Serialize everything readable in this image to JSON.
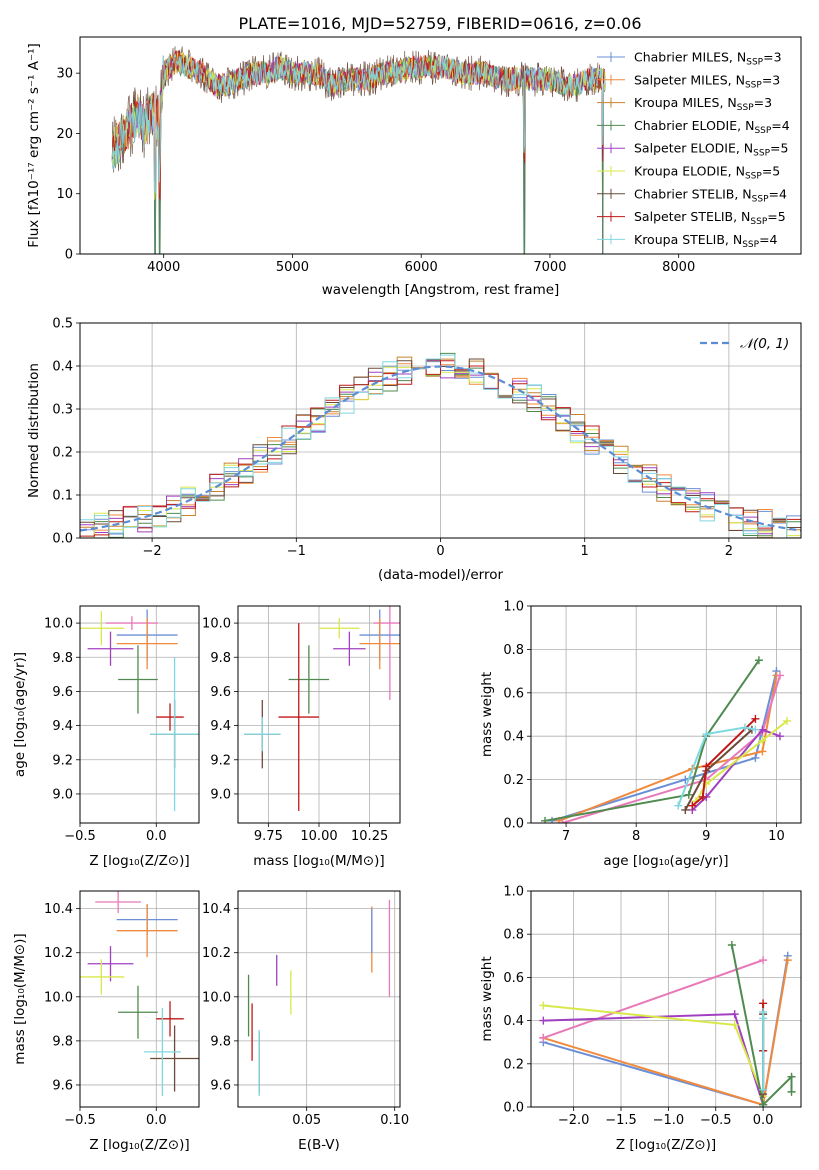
{
  "figure": {
    "title": "PLATE=1016, MJD=52759, FIBERID=0616, z=0.06"
  },
  "legend_entries": [
    {
      "label": "Chabrier MILES, N",
      "sub": "SSP",
      "tail": "=3",
      "color": "#6b8fd6"
    },
    {
      "label": "Salpeter MILES, N",
      "sub": "SSP",
      "tail": "=3",
      "color": "#f08a3c"
    },
    {
      "label": "Kroupa MILES, N",
      "sub": "SSP",
      "tail": "=3",
      "color": "#c8822e"
    },
    {
      "label": "Chabrier ELODIE, N",
      "sub": "SSP",
      "tail": "=4",
      "color": "#4f8a4f"
    },
    {
      "label": "Salpeter ELODIE, N",
      "sub": "SSP",
      "tail": "=5",
      "color": "#a040c0"
    },
    {
      "label": "Kroupa ELODIE, N",
      "sub": "SSP",
      "tail": "=5",
      "color": "#d8e84a"
    },
    {
      "label": "Chabrier STELIB, N",
      "sub": "SSP",
      "tail": "=4",
      "color": "#6b4a3a"
    },
    {
      "label": "Salpeter STELIB, N",
      "sub": "SSP",
      "tail": "=5",
      "color": "#c01818"
    },
    {
      "label": "Kroupa STELIB, N",
      "sub": "SSP",
      "tail": "=4",
      "color": "#7fd8e0"
    }
  ],
  "chart_data": [
    {
      "id": "spectrum",
      "type": "line",
      "xlabel": "wavelength [Angstrom, rest frame]",
      "ylabel": "Flux [fλ10⁻¹⁷ erg cm⁻² s⁻¹ A⁻¹]",
      "xlim": [
        3350,
        8950
      ],
      "ylim": [
        0,
        36
      ],
      "xticks": [
        4000,
        5000,
        6000,
        7000,
        8000
      ],
      "yticks": [
        0,
        10,
        20,
        30
      ],
      "x_range_data": [
        3600,
        7430
      ],
      "anchors": [
        [
          3600,
          17
        ],
        [
          3700,
          20
        ],
        [
          3800,
          23
        ],
        [
          3850,
          21
        ],
        [
          3900,
          24
        ],
        [
          3960,
          22
        ],
        [
          4000,
          30
        ],
        [
          4100,
          32
        ],
        [
          4200,
          31
        ],
        [
          4300,
          30
        ],
        [
          4400,
          28
        ],
        [
          4500,
          28
        ],
        [
          4600,
          29
        ],
        [
          4700,
          30
        ],
        [
          4800,
          30
        ],
        [
          4900,
          31
        ],
        [
          5000,
          30
        ],
        [
          5100,
          30
        ],
        [
          5200,
          30
        ],
        [
          5300,
          28
        ],
        [
          5400,
          29
        ],
        [
          5500,
          29
        ],
        [
          5600,
          29
        ],
        [
          5700,
          30
        ],
        [
          5800,
          30
        ],
        [
          5900,
          31
        ],
        [
          6000,
          31
        ],
        [
          6100,
          31
        ],
        [
          6200,
          31
        ],
        [
          6300,
          30
        ],
        [
          6400,
          30
        ],
        [
          6500,
          30
        ],
        [
          6600,
          29
        ],
        [
          6700,
          29
        ],
        [
          6800,
          29
        ],
        [
          6900,
          29
        ],
        [
          7000,
          29
        ],
        [
          7100,
          28
        ],
        [
          7200,
          28
        ],
        [
          7300,
          29
        ],
        [
          7430,
          29
        ]
      ],
      "dips": [
        3933,
        3968,
        6800,
        7410
      ],
      "grid": false
    },
    {
      "id": "residuals",
      "type": "histogram",
      "xlabel": "(data-model)/error",
      "ylabel": "Normed distribution",
      "xlim": [
        -2.5,
        2.5
      ],
      "ylim": [
        0,
        0.5
      ],
      "xticks": [
        -2,
        -1,
        0,
        1,
        2
      ],
      "xticklabels": [
        "−2",
        "−1",
        "0",
        "1",
        "2"
      ],
      "yticks": [
        0.0,
        0.1,
        0.2,
        0.3,
        0.4,
        0.5
      ],
      "yticklabels": [
        "0.0",
        "0.1",
        "0.2",
        "0.3",
        "0.4",
        "0.5"
      ],
      "bin_width": 0.1,
      "legend": "𝒩(0, 1)",
      "legend_position": "top-right",
      "grid": true
    },
    {
      "id": "age-vs-Z",
      "type": "scatter",
      "xlabel": "Z [log₁₀(Z/Z⊙)]",
      "ylabel": "age  [log₁₀(age/yr)]",
      "xlim": [
        -0.5,
        0.28
      ],
      "ylim": [
        8.83,
        10.1
      ],
      "xticks": [
        -0.5,
        0.0
      ],
      "xticklabels": [
        "−0.5",
        "0.0"
      ],
      "yticks": [
        9.0,
        9.2,
        9.4,
        9.6,
        9.8,
        10.0
      ],
      "yticklabels": [
        "9.0",
        "9.2",
        "9.4",
        "9.6",
        "9.8",
        "10.0"
      ],
      "points": [
        {
          "x": -0.16,
          "y": 10.0,
          "xerr": 0.17,
          "yerr": 0.04,
          "color": "#e879b8"
        },
        {
          "x": -0.06,
          "y": 9.93,
          "xerr": 0.2,
          "yerr": 0.15,
          "color": "#6b8fd6"
        },
        {
          "x": -0.06,
          "y": 9.88,
          "xerr": 0.2,
          "yerr": 0.15,
          "color": "#f08a3c"
        },
        {
          "x": -0.3,
          "y": 9.85,
          "xerr": 0.15,
          "yerr": 0.1,
          "color": "#a040c0"
        },
        {
          "x": -0.36,
          "y": 9.97,
          "xerr": 0.15,
          "yerr": 0.1,
          "color": "#d8e84a"
        },
        {
          "x": -0.12,
          "y": 9.67,
          "xerr": 0.13,
          "yerr": 0.2,
          "color": "#4f8a4f"
        },
        {
          "x": 0.09,
          "y": 9.45,
          "xerr": 0.09,
          "yerr": 0.08,
          "color": "#c01818"
        },
        {
          "x": 0.12,
          "y": 9.35,
          "xerr": 0.16,
          "yerr": 0.2,
          "color": "#6b4a3a"
        },
        {
          "x": 0.12,
          "y": 9.35,
          "xerr": 0.16,
          "yerr": 0.45,
          "color": "#7fd8e0"
        }
      ],
      "grid": true
    },
    {
      "id": "age-vs-mass",
      "type": "scatter",
      "xlabel": "mass [log₁₀(M/M⊙)]",
      "ylabel": "",
      "xlim": [
        9.6,
        10.4
      ],
      "ylim": [
        8.83,
        10.1
      ],
      "xticks": [
        9.75,
        10.0,
        10.25
      ],
      "xticklabels": [
        "9.75",
        "10.00",
        "10.25"
      ],
      "yticks": [
        9.0,
        9.2,
        9.4,
        9.6,
        9.8,
        10.0
      ],
      "yticklabels": [
        "9.0",
        "9.2",
        "9.4",
        "9.6",
        "9.8",
        "10.0"
      ],
      "points": [
        {
          "x": 10.35,
          "y": 10.0,
          "xerr": 0.08,
          "yerr": 0.45,
          "color": "#e879b8"
        },
        {
          "x": 10.3,
          "y": 9.93,
          "xerr": 0.1,
          "yerr": 0.15,
          "color": "#6b8fd6"
        },
        {
          "x": 10.3,
          "y": 9.88,
          "xerr": 0.1,
          "yerr": 0.15,
          "color": "#f08a3c"
        },
        {
          "x": 10.15,
          "y": 9.85,
          "xerr": 0.08,
          "yerr": 0.1,
          "color": "#a040c0"
        },
        {
          "x": 10.1,
          "y": 9.97,
          "xerr": 0.1,
          "yerr": 0.06,
          "color": "#d8e84a"
        },
        {
          "x": 9.95,
          "y": 9.67,
          "xerr": 0.1,
          "yerr": 0.2,
          "color": "#4f8a4f"
        },
        {
          "x": 9.9,
          "y": 9.45,
          "xerr": 0.1,
          "yerr": 0.55,
          "color": "#c01818"
        },
        {
          "x": 9.72,
          "y": 9.35,
          "xerr": 0.09,
          "yerr": 0.2,
          "color": "#6b4a3a"
        },
        {
          "x": 9.72,
          "y": 9.35,
          "xerr": 0.09,
          "yerr": 0.1,
          "color": "#7fd8e0"
        }
      ],
      "grid": true
    },
    {
      "id": "massweight-vs-age",
      "type": "line",
      "xlabel": "age  [log₁₀(age/yr)]",
      "ylabel": "mass weight",
      "xlim": [
        6.5,
        10.35
      ],
      "ylim": [
        0,
        1.0
      ],
      "xticks": [
        7,
        8,
        9,
        10
      ],
      "yticks": [
        0.0,
        0.2,
        0.4,
        0.6,
        0.8,
        1.0
      ],
      "yticklabels": [
        "0.0",
        "0.2",
        "0.4",
        "0.6",
        "0.8",
        "1.0"
      ],
      "series": [
        {
          "color": "#6b8fd6",
          "points": [
            [
              6.8,
              0.01
            ],
            [
              8.7,
              0.2
            ],
            [
              9.7,
              0.3
            ],
            [
              10.0,
              0.7
            ]
          ]
        },
        {
          "color": "#f08a3c",
          "points": [
            [
              6.9,
              0.01
            ],
            [
              8.8,
              0.25
            ],
            [
              9.8,
              0.33
            ],
            [
              10.0,
              0.68
            ]
          ]
        },
        {
          "color": "#e879b8",
          "points": [
            [
              6.95,
              0.0
            ],
            [
              9.0,
              0.2
            ],
            [
              9.8,
              0.42
            ],
            [
              10.05,
              0.68
            ]
          ]
        },
        {
          "color": "#a040c0",
          "points": [
            [
              8.8,
              0.06
            ],
            [
              9.0,
              0.12
            ],
            [
              9.8,
              0.43
            ],
            [
              10.05,
              0.4
            ]
          ]
        },
        {
          "color": "#d8e84a",
          "points": [
            [
              8.85,
              0.1
            ],
            [
              9.0,
              0.18
            ],
            [
              9.8,
              0.38
            ],
            [
              10.15,
              0.47
            ]
          ]
        },
        {
          "color": "#4f8a4f",
          "points": [
            [
              6.7,
              0.01
            ],
            [
              8.75,
              0.13
            ],
            [
              9.0,
              0.4
            ],
            [
              9.75,
              0.75
            ]
          ]
        },
        {
          "color": "#6b4a3a",
          "points": [
            [
              8.7,
              0.06
            ],
            [
              9.0,
              0.24
            ],
            [
              9.65,
              0.43
            ]
          ]
        },
        {
          "color": "#c01818",
          "points": [
            [
              8.8,
              0.08
            ],
            [
              8.95,
              0.12
            ],
            [
              9.0,
              0.26
            ],
            [
              9.7,
              0.48
            ]
          ]
        },
        {
          "color": "#7fd8e0",
          "points": [
            [
              8.6,
              0.08
            ],
            [
              9.0,
              0.41
            ],
            [
              9.55,
              0.44
            ],
            [
              9.7,
              0.43
            ]
          ]
        }
      ],
      "grid": true
    },
    {
      "id": "mass-vs-Z",
      "type": "scatter",
      "xlabel": "Z [log₁₀(Z/Z⊙)]",
      "ylabel": "mass [log₁₀(M/M⊙)]",
      "xlim": [
        -0.5,
        0.28
      ],
      "ylim": [
        9.5,
        10.48
      ],
      "xticks": [
        -0.5,
        0.0
      ],
      "xticklabels": [
        "−0.5",
        "0.0"
      ],
      "yticks": [
        9.6,
        9.8,
        10.0,
        10.2,
        10.4
      ],
      "yticklabels": [
        "9.6",
        "9.8",
        "10.0",
        "10.2",
        "10.4"
      ],
      "points": [
        {
          "x": -0.25,
          "y": 10.43,
          "xerr": 0.15,
          "yerr": 0.05,
          "color": "#e879b8"
        },
        {
          "x": -0.06,
          "y": 10.35,
          "xerr": 0.2,
          "yerr": 0.07,
          "color": "#6b8fd6"
        },
        {
          "x": -0.06,
          "y": 10.3,
          "xerr": 0.2,
          "yerr": 0.12,
          "color": "#f08a3c"
        },
        {
          "x": -0.3,
          "y": 10.15,
          "xerr": 0.15,
          "yerr": 0.08,
          "color": "#a040c0"
        },
        {
          "x": -0.36,
          "y": 10.09,
          "xerr": 0.15,
          "yerr": 0.08,
          "color": "#d8e84a"
        },
        {
          "x": -0.12,
          "y": 9.93,
          "xerr": 0.13,
          "yerr": 0.12,
          "color": "#4f8a4f"
        },
        {
          "x": 0.09,
          "y": 9.9,
          "xerr": 0.09,
          "yerr": 0.08,
          "color": "#c01818"
        },
        {
          "x": 0.12,
          "y": 9.72,
          "xerr": 0.16,
          "yerr": 0.15,
          "color": "#6b4a3a"
        },
        {
          "x": 0.04,
          "y": 9.75,
          "xerr": 0.12,
          "yerr": 0.2,
          "color": "#7fd8e0"
        }
      ],
      "grid": true
    },
    {
      "id": "mass-vs-ebv",
      "type": "scatter",
      "xlabel": "E(B-V)",
      "ylabel": "",
      "xlim": [
        0.011,
        0.103
      ],
      "ylim": [
        9.5,
        10.48
      ],
      "xticks": [
        0.05,
        0.1
      ],
      "xticklabels": [
        "0.05",
        "0.10"
      ],
      "yticks": [
        9.6,
        9.8,
        10.0,
        10.2,
        10.4
      ],
      "yticklabels": [
        "9.6",
        "9.8",
        "10.0",
        "10.2",
        "10.4"
      ],
      "points": [
        {
          "x": 0.097,
          "y": 10.22,
          "xerr": 0,
          "yerr": 0.22,
          "color": "#e879b8"
        },
        {
          "x": 0.087,
          "y": 10.26,
          "xerr": 0,
          "yerr": 0.15,
          "color": "#f08a3c"
        },
        {
          "x": 0.087,
          "y": 10.3,
          "xerr": 0,
          "yerr": 0.1,
          "color": "#6b8fd6"
        },
        {
          "x": 0.033,
          "y": 10.12,
          "xerr": 0,
          "yerr": 0.07,
          "color": "#a040c0"
        },
        {
          "x": 0.041,
          "y": 10.02,
          "xerr": 0,
          "yerr": 0.1,
          "color": "#d8e84a"
        },
        {
          "x": 0.017,
          "y": 9.96,
          "xerr": 0,
          "yerr": 0.14,
          "color": "#4f8a4f"
        },
        {
          "x": 0.019,
          "y": 9.84,
          "xerr": 0,
          "yerr": 0.13,
          "color": "#c01818"
        },
        {
          "x": 0.023,
          "y": 9.7,
          "xerr": 0,
          "yerr": 0.14,
          "color": "#6b4a3a"
        },
        {
          "x": 0.023,
          "y": 9.7,
          "xerr": 0,
          "yerr": 0.15,
          "color": "#7fd8e0"
        }
      ],
      "grid": true
    },
    {
      "id": "massweight-vs-Z",
      "type": "line",
      "xlabel": "Z [log₁₀(Z/Z⊙)]",
      "ylabel": "mass weight",
      "xlim": [
        -2.45,
        0.4
      ],
      "ylim": [
        0,
        1.0
      ],
      "xticks": [
        -2.0,
        -1.5,
        -1.0,
        -0.5,
        0.0
      ],
      "xticklabels": [
        "−2.0",
        "−1.5",
        "−1.0",
        "−0.5",
        "0.0"
      ],
      "yticks": [
        0.0,
        0.2,
        0.4,
        0.6,
        0.8,
        1.0
      ],
      "yticklabels": [
        "0.0",
        "0.2",
        "0.4",
        "0.6",
        "0.8",
        "1.0"
      ],
      "series": [
        {
          "color": "#6b8fd6",
          "points": [
            [
              -2.32,
              0.3
            ],
            [
              0.0,
              0.01
            ],
            [
              0.26,
              0.7
            ]
          ]
        },
        {
          "color": "#f08a3c",
          "points": [
            [
              -2.32,
              0.32
            ],
            [
              0.0,
              0.01
            ],
            [
              0.26,
              0.68
            ]
          ]
        },
        {
          "color": "#e879b8",
          "points": [
            [
              -2.32,
              0.32
            ],
            [
              0.0,
              0.68
            ]
          ]
        },
        {
          "color": "#a040c0",
          "points": [
            [
              -2.32,
              0.4
            ],
            [
              -0.3,
              0.43
            ],
            [
              0.0,
              0.01
            ]
          ]
        },
        {
          "color": "#d8e84a",
          "points": [
            [
              -2.32,
              0.47
            ],
            [
              -0.3,
              0.38
            ],
            [
              0.0,
              0.05
            ]
          ]
        },
        {
          "color": "#4f8a4f",
          "points": [
            [
              -0.33,
              0.75
            ],
            [
              0.0,
              0.01
            ],
            [
              0.3,
              0.14
            ],
            [
              0.3,
              0.07
            ]
          ]
        },
        {
          "color": "#6b4a3a",
          "points": [
            [
              0.0,
              0.43
            ],
            [
              0.0,
              0.26
            ],
            [
              0.0,
              0.06
            ]
          ]
        },
        {
          "color": "#c01818",
          "points": [
            [
              0.0,
              0.48
            ],
            [
              0.0,
              0.26
            ],
            [
              0.0,
              0.08
            ]
          ]
        },
        {
          "color": "#7fd8e0",
          "points": [
            [
              0.0,
              0.44
            ],
            [
              0.0,
              0.41
            ],
            [
              0.0,
              0.08
            ]
          ]
        }
      ],
      "grid": true
    }
  ]
}
